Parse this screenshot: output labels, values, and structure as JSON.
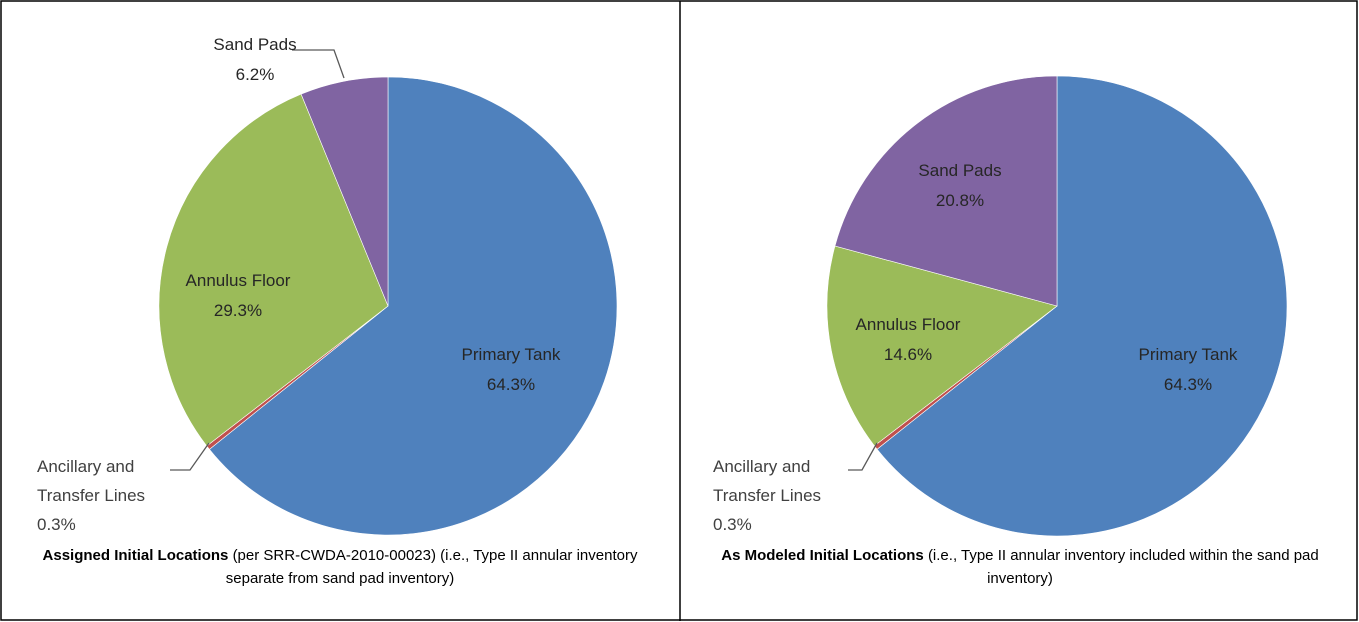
{
  "chart_data": [
    {
      "type": "pie",
      "categories": [
        "Primary Tank",
        "Ancillary and Transfer Lines",
        "Annulus Floor",
        "Sand Pads"
      ],
      "values": [
        64.3,
        0.3,
        29.3,
        6.2
      ],
      "value_labels": [
        "64.3%",
        "0.3%",
        "29.3%",
        "6.2%"
      ],
      "colors": [
        "#4f81bd",
        "#c0504d",
        "#9bbb59",
        "#8064a2"
      ],
      "caption_title": "Assigned Initial Locations",
      "caption": "(per SRR-CWDA-2010-00023) (i.e., Type II annular inventory separate from sand pad inventory)"
    },
    {
      "type": "pie",
      "categories": [
        "Primary Tank",
        "Ancillary and Transfer Lines",
        "Annulus Floor",
        "Sand Pads"
      ],
      "values": [
        64.3,
        0.3,
        14.6,
        20.8
      ],
      "value_labels": [
        "64.3%",
        "0.3%",
        "14.6%",
        "20.8%"
      ],
      "colors": [
        "#4f81bd",
        "#c0504d",
        "#9bbb59",
        "#8064a2"
      ],
      "caption_title": "As Modeled Initial Locations",
      "caption": "(i.e., Type II annular inventory included within the sand pad inventory)"
    }
  ]
}
